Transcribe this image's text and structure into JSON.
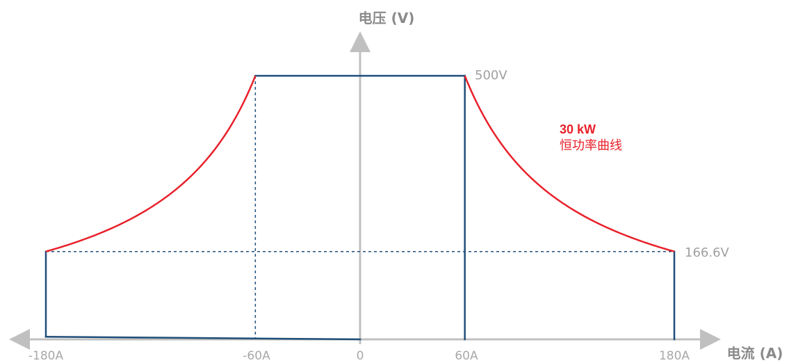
{
  "chart_data": {
    "type": "line",
    "title": "",
    "xlabel": "电流 (A)",
    "ylabel": "电压 (V)",
    "x_ticks": [
      "-180A",
      "-60A",
      "0",
      "60A",
      "180A"
    ],
    "xlim": [
      -180,
      180
    ],
    "ylim": [
      0,
      500
    ],
    "voltage_labels": [
      "500V",
      "166.6V"
    ],
    "annotation": {
      "value": "30 kW",
      "text": "恒功率曲线"
    },
    "colors": {
      "power_curve": "#e8202a",
      "boundary": "#1f4e79",
      "axis": "#c0c0c0",
      "guide": "#1f4e79"
    },
    "series": [
      {
        "style": "boundary",
        "points": [
          [
            -60,
            500
          ],
          [
            60,
            500
          ],
          [
            60,
            0
          ],
          [
            180,
            0
          ],
          [
            180,
            166.6
          ],
          [
            -180,
            166.6
          ],
          [
            -180,
            5
          ],
          [
            0,
            0
          ]
        ]
      },
      {
        "style": "power_curve",
        "power_kw": 30,
        "x_range": [
          60,
          180
        ]
      },
      {
        "style": "power_curve",
        "power_kw": 30,
        "x_range": [
          -180,
          -60
        ]
      }
    ],
    "guides": {
      "vertical": [
        -60,
        60
      ],
      "horizontal": [
        166.6
      ]
    },
    "grid": false,
    "legend": "none"
  }
}
